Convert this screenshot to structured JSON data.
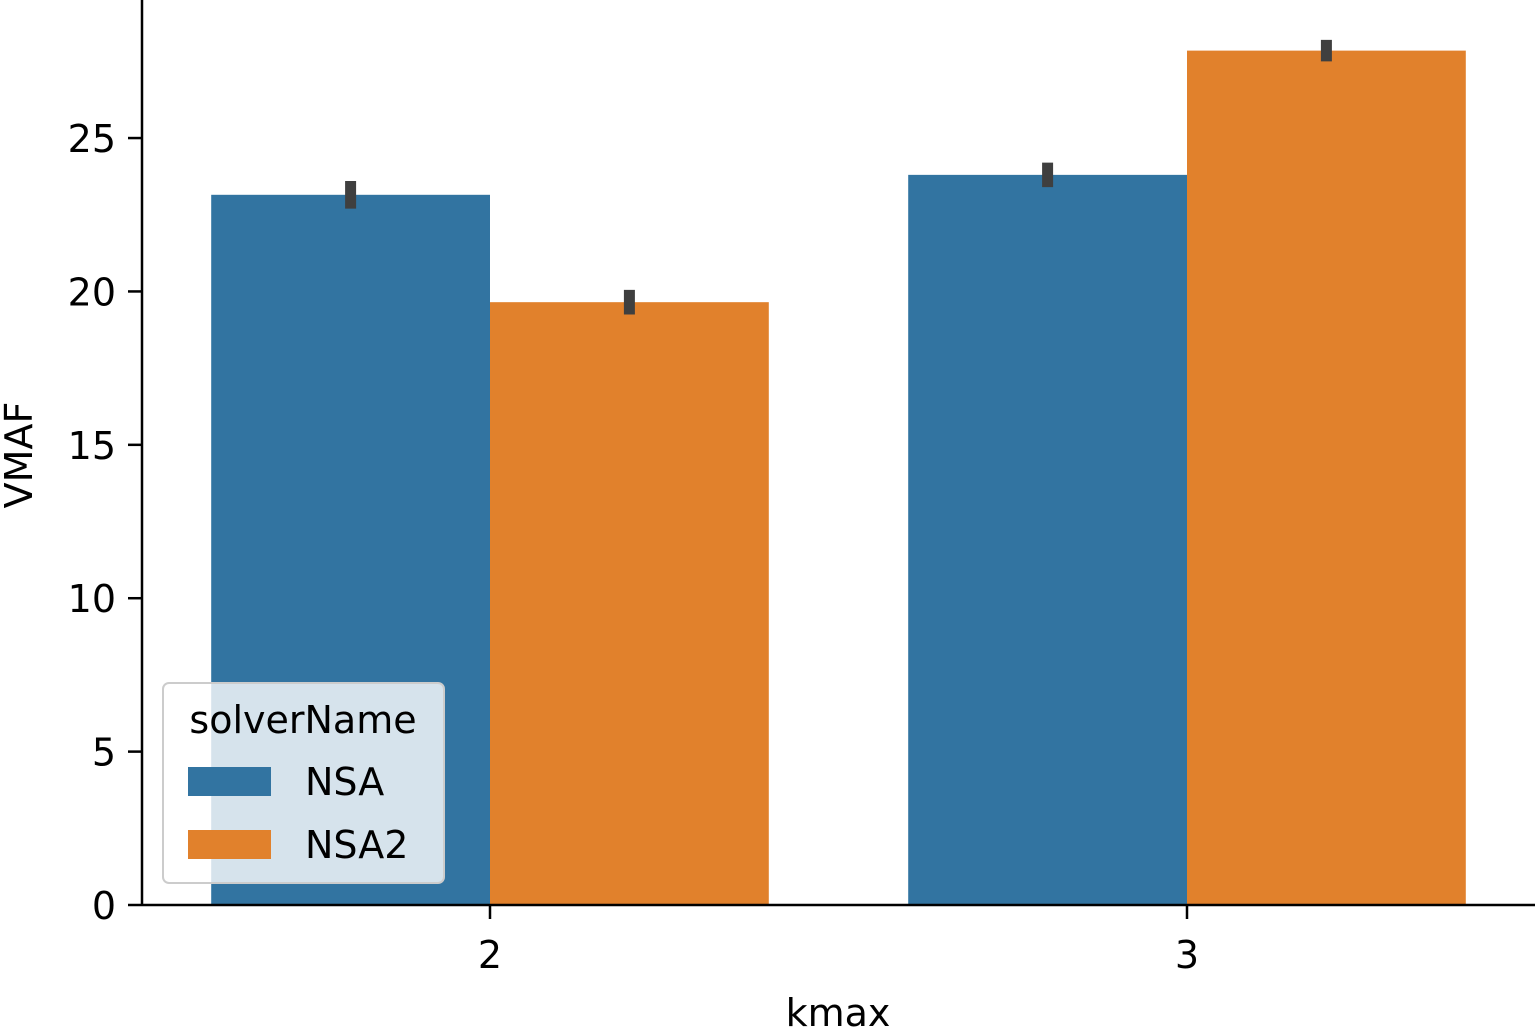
{
  "chart_data": {
    "type": "bar",
    "categories": [
      "2",
      "3"
    ],
    "series": [
      {
        "name": "NSA",
        "color": "#3274a1",
        "values": [
          23.15,
          23.8
        ],
        "ci_low": [
          22.7,
          23.4
        ],
        "ci_high": [
          23.6,
          24.2
        ]
      },
      {
        "name": "NSA2",
        "color": "#e1812c",
        "values": [
          19.65,
          27.85
        ],
        "ci_low": [
          19.25,
          27.5
        ],
        "ci_high": [
          20.05,
          28.2
        ]
      }
    ],
    "xlabel": "kmax",
    "ylabel": "VMAF",
    "ylim": [
      0,
      29.5
    ],
    "yticks": [
      0,
      5,
      10,
      15,
      20,
      25
    ],
    "legend": {
      "title": "solverName",
      "placement": "lower-left"
    },
    "grid": false,
    "errorbar_color": "#3f3f3f"
  }
}
